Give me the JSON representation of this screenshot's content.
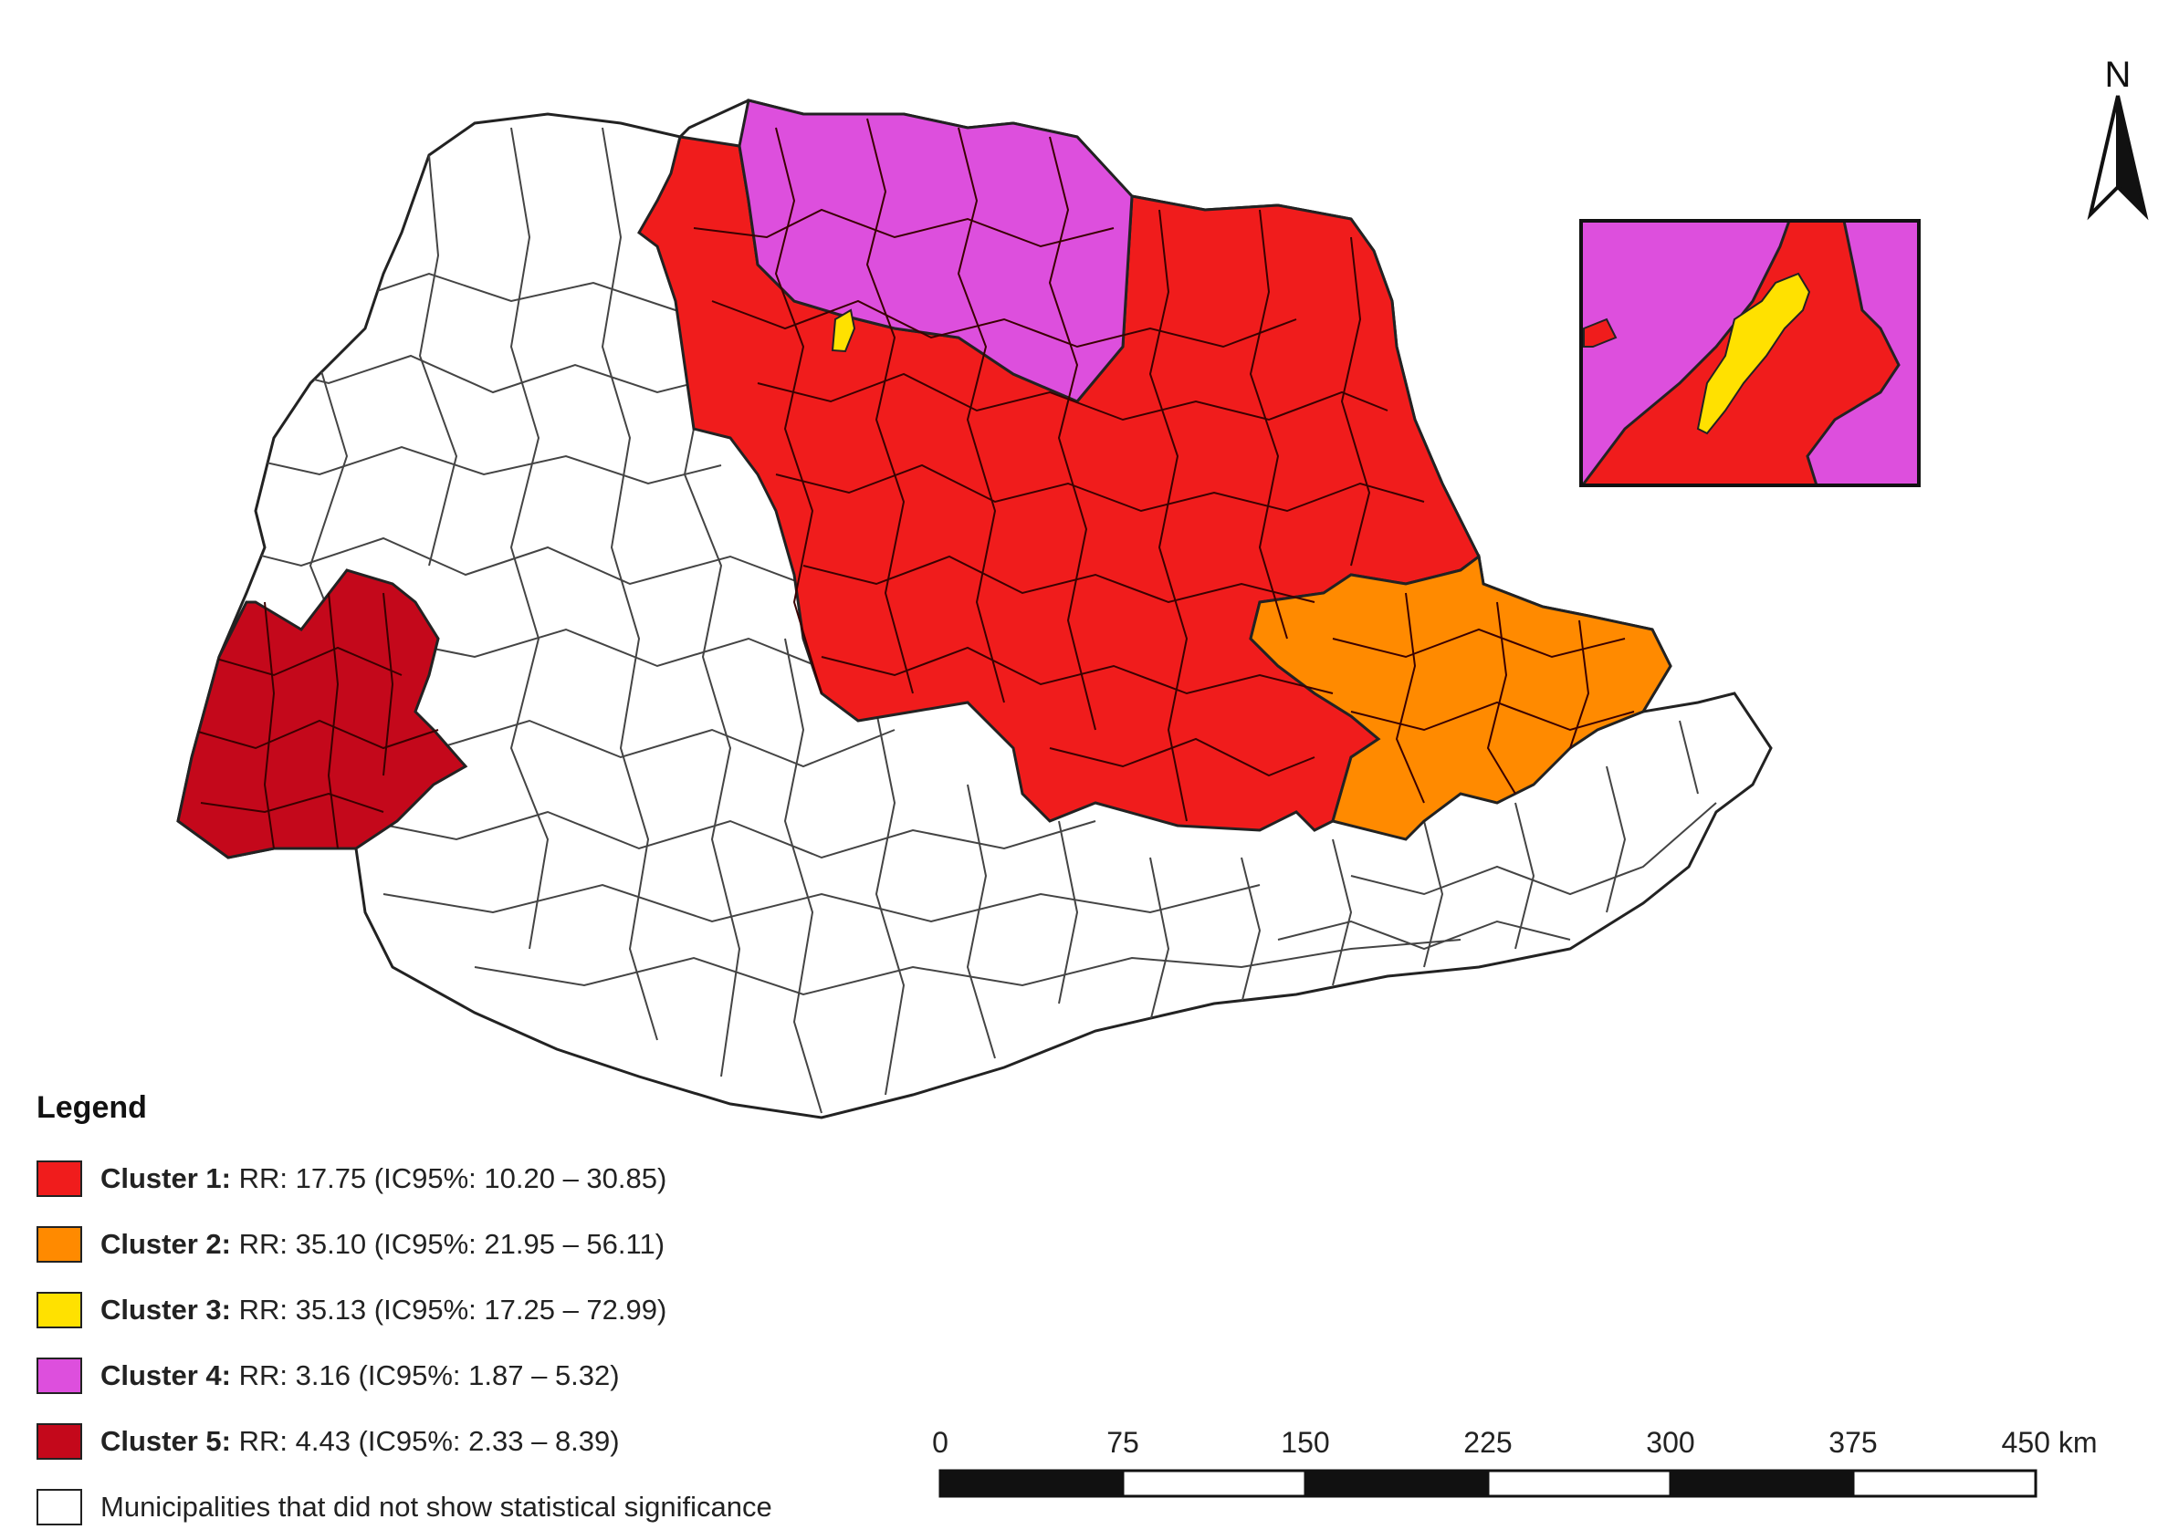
{
  "map": {
    "north_label": "N",
    "colors": {
      "cluster1": "#f01c1c",
      "cluster2": "#ff8a00",
      "cluster3": "#ffe100",
      "cluster4": "#dd4fdd",
      "cluster5": "#c4081b",
      "non_significant": "#ffffff",
      "border": "#222222"
    }
  },
  "legend": {
    "title": "Legend",
    "items": [
      {
        "name": "Cluster 1:",
        "desc": " RR: 17.75 (IC95%: 10.20 – 30.85)",
        "color": "#f01c1c"
      },
      {
        "name": "Cluster 2:",
        "desc": " RR: 35.10 (IC95%: 21.95 – 56.11)",
        "color": "#ff8a00"
      },
      {
        "name": "Cluster 3:",
        "desc": " RR: 35.13 (IC95%: 17.25 – 72.99)",
        "color": "#ffe100"
      },
      {
        "name": "Cluster 4:",
        "desc": " RR: 3.16 (IC95%: 1.87 – 5.32)",
        "color": "#dd4fdd"
      },
      {
        "name": "Cluster 5:",
        "desc": " RR: 4.43 (IC95%: 2.33 – 8.39)",
        "color": "#c4081b"
      },
      {
        "name": "",
        "desc": "Municipalities that did not show statistical significance",
        "color": "#ffffff"
      }
    ]
  },
  "scale_bar": {
    "ticks": [
      "0",
      "75",
      "150",
      "225",
      "300",
      "375",
      "450 km"
    ]
  }
}
